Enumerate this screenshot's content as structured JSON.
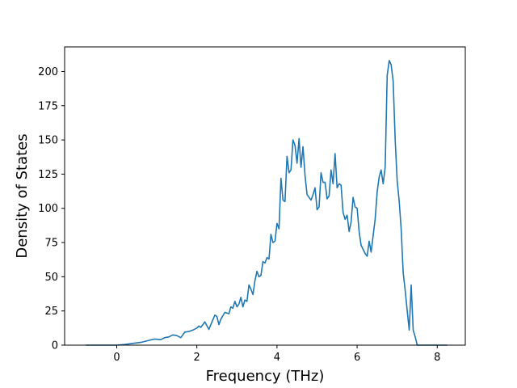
{
  "chart_data": {
    "type": "line",
    "title": "",
    "xlabel": "Frequency (THz)",
    "ylabel": "Density of States",
    "xlim": [
      -1.3,
      8.7
    ],
    "ylim": [
      0,
      218
    ],
    "grid": false,
    "legend": "none",
    "xticks": [
      0,
      2,
      4,
      6,
      8
    ],
    "yticks": [
      0,
      25,
      50,
      75,
      100,
      125,
      150,
      175,
      200
    ],
    "colors": {
      "line": "#1f77b4",
      "axes": "#000000",
      "background": "#ffffff"
    },
    "series": [
      {
        "x": [
          -0.77,
          -0.5,
          0,
          0.2,
          0.4,
          0.6,
          0.8,
          0.95,
          1.1,
          1.2,
          1.3,
          1.4,
          1.5,
          1.6,
          1.7,
          1.8,
          1.9,
          2.0,
          2.05,
          2.1,
          2.2,
          2.3,
          2.35,
          2.45,
          2.5,
          2.55,
          2.6,
          2.7,
          2.8,
          2.85,
          2.9,
          2.95,
          3.0,
          3.05,
          3.1,
          3.15,
          3.2,
          3.25,
          3.3,
          3.35,
          3.4,
          3.45,
          3.5,
          3.55,
          3.6,
          3.65,
          3.7,
          3.75,
          3.8,
          3.85,
          3.9,
          3.95,
          4.0,
          4.05,
          4.1,
          4.15,
          4.2,
          4.25,
          4.3,
          4.35,
          4.4,
          4.45,
          4.5,
          4.55,
          4.6,
          4.65,
          4.7,
          4.75,
          4.8,
          4.85,
          4.9,
          4.95,
          5.0,
          5.05,
          5.1,
          5.15,
          5.2,
          5.25,
          5.3,
          5.35,
          5.4,
          5.45,
          5.5,
          5.55,
          5.6,
          5.65,
          5.7,
          5.75,
          5.8,
          5.85,
          5.9,
          5.95,
          6.0,
          6.05,
          6.1,
          6.15,
          6.2,
          6.25,
          6.3,
          6.35,
          6.4,
          6.45,
          6.5,
          6.55,
          6.6,
          6.65,
          6.7,
          6.75,
          6.8,
          6.85,
          6.9,
          6.95,
          7.0,
          7.05,
          7.1,
          7.15,
          7.2,
          7.25,
          7.3,
          7.35,
          7.4,
          7.45,
          7.5,
          8.25
        ],
        "y": [
          0,
          0,
          0,
          0.5,
          1.3,
          2,
          3.5,
          4.5,
          4,
          5.5,
          6,
          7.5,
          7,
          5.5,
          9.5,
          10,
          11,
          12.5,
          14,
          13,
          17,
          11.5,
          15,
          22,
          21,
          15,
          19,
          24,
          23,
          28,
          27,
          32,
          28,
          30,
          35,
          28,
          33,
          32,
          44,
          41,
          37,
          47,
          54,
          50,
          51,
          61,
          60,
          64,
          63,
          81,
          75,
          76,
          89,
          85,
          122,
          106,
          105,
          138,
          126,
          128,
          150,
          146,
          133,
          151,
          130,
          145,
          124,
          110,
          108,
          106,
          110,
          115,
          99,
          101,
          126,
          119,
          119,
          107,
          109,
          128,
          118,
          140,
          115,
          118,
          117,
          97,
          92,
          95,
          83,
          90,
          108,
          101,
          100,
          83,
          73,
          70,
          67,
          65,
          76,
          68,
          80,
          92,
          112,
          123,
          128,
          118,
          130,
          197,
          208,
          205,
          193,
          150,
          120,
          105,
          85,
          53,
          40,
          25,
          11,
          44,
          11,
          6,
          0,
          0
        ]
      }
    ]
  }
}
